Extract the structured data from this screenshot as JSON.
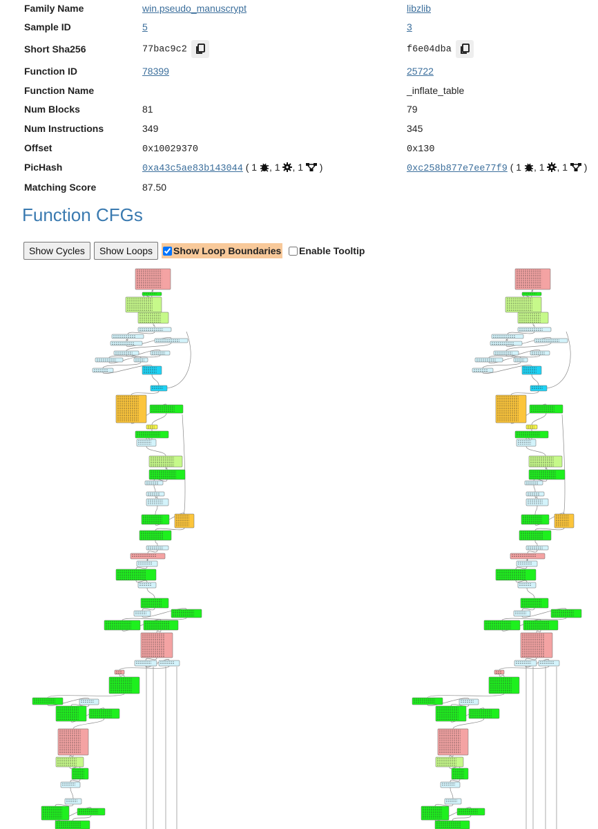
{
  "table": {
    "rows": [
      {
        "label": "Family Name",
        "left": "win.pseudo_manuscrypt",
        "right": "libzlib"
      },
      {
        "label": "Sample ID",
        "left": "5",
        "right": "3"
      },
      {
        "label": "Short Sha256",
        "left": "77bac9c2",
        "right": "f6e04dba"
      },
      {
        "label": "Function ID",
        "left": "78399",
        "right": "25722"
      },
      {
        "label": "Function Name",
        "right": "_inflate_table"
      },
      {
        "label": "Num Blocks",
        "left": "81",
        "right": "79"
      },
      {
        "label": "Num Instructions",
        "left": "349",
        "right": "345"
      },
      {
        "label": "Offset",
        "left": "0x10029370",
        "right": "0x130"
      },
      {
        "label": "PicHash",
        "left": {
          "hash": "0xa43c5ae83b143044",
          "counts": [
            "1",
            "1",
            "1"
          ]
        },
        "right": {
          "hash": "0xc258b877e7ee77f9",
          "counts": [
            "1",
            "1",
            "1"
          ]
        }
      },
      {
        "label": "Matching Score",
        "left": "87.50"
      }
    ]
  },
  "section": {
    "title": "Function CFGs"
  },
  "controls": {
    "buttons": [
      "Show Cycles",
      "Show Loops"
    ],
    "checkboxes": [
      {
        "label": "Show Loop Boundaries",
        "checked": true
      },
      {
        "label": "Enable Tooltip",
        "checked": false
      }
    ]
  }
}
